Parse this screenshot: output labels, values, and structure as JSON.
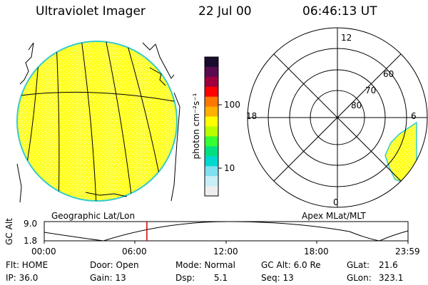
{
  "header": {
    "title": "Ultraviolet Imager",
    "date": "22 Jul 00",
    "time": "06:46:13 UT"
  },
  "colorbar": {
    "unit_label": "photon cm⁻²s⁻¹",
    "ticks": [
      "100",
      "10"
    ],
    "colors": [
      "#1a0c2e",
      "#5a0b4f",
      "#a0003c",
      "#ff0000",
      "#ff7700",
      "#ffb000",
      "#ffff00",
      "#b7ff00",
      "#33ff33",
      "#00e080",
      "#00d8d0",
      "#7fe0f0",
      "#c8eef8",
      "#eeeeee"
    ]
  },
  "left_panel": {
    "caption": "Geographic Lat/Lon"
  },
  "right_panel": {
    "caption": "Apex MLat/MLT",
    "mlt_labels": {
      "top": "12",
      "left": "18",
      "right": "6",
      "bottom": "0"
    },
    "lat_labels": [
      "60",
      "70",
      "80"
    ]
  },
  "altitude_plot": {
    "ylabel": "GC Alt",
    "yticks": [
      "9.0",
      "1.8"
    ],
    "xticks": [
      "00:00",
      "06:00",
      "12:00",
      "18:00",
      "23:59"
    ],
    "current_time_hours": 6.77,
    "marker_color": "#cc0000"
  },
  "info": {
    "flt": "Flt: HOME",
    "ip": "IP: 36.0",
    "door": "Door: Open",
    "gain": "Gain: 13",
    "mode": "Mode: Normal",
    "dsp_label": "Dsp:",
    "dsp_value": "5.1",
    "gc_alt": "GC Alt: 6.0 Re",
    "seq": "Seq: 13",
    "glat_label": "GLat:",
    "glat_value": "21.6",
    "glon_label": "GLon:",
    "glon_value": "323.1"
  }
}
